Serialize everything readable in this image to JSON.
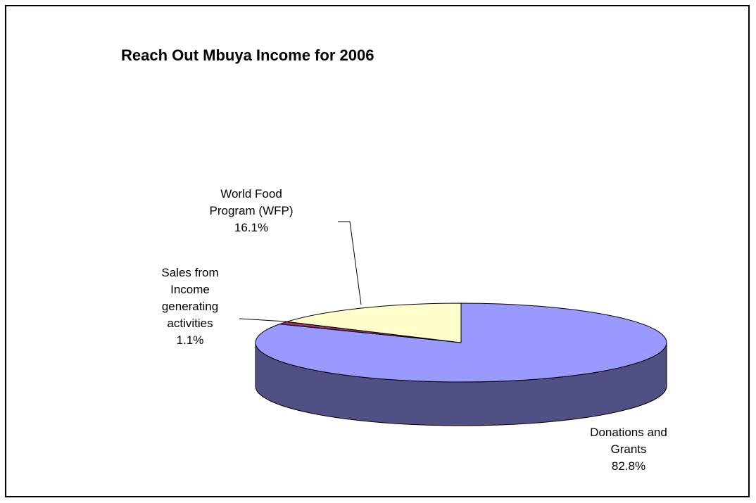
{
  "chart_data": {
    "type": "pie",
    "title": "Reach Out Mbuya Income for 2006",
    "categories": [
      "Donations and Grants",
      "Sales from Income generating activities",
      "World Food Program (WFP)"
    ],
    "values": [
      82.8,
      1.1,
      16.1
    ],
    "value_labels": [
      "82.8%",
      "1.1%",
      "16.1%"
    ],
    "colors": [
      "#9999ff",
      "#993366",
      "#ffffcc"
    ],
    "three_d": true
  }
}
